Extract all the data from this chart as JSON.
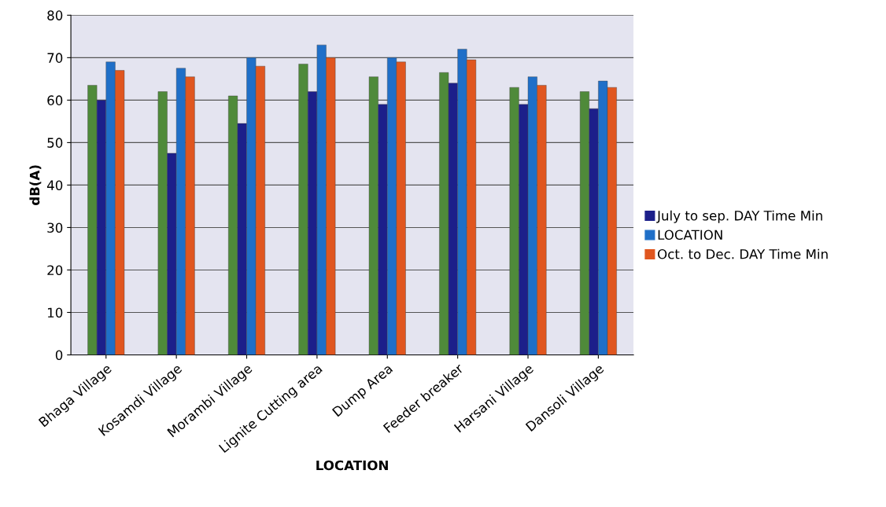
{
  "chart_data": {
    "type": "bar",
    "xlabel": "LOCATION",
    "ylabel": "dB(A)",
    "categories": [
      "Bhaga Village",
      "Kosamdi Village",
      "Morambi Village",
      "Lignite Cutting area",
      "Dump Area",
      "Feeder breaker",
      "Harsani Village",
      "Dansoli Village"
    ],
    "series": [
      {
        "color": "#4f8a3a",
        "values": [
          63.5,
          62,
          61,
          68.5,
          65.5,
          66.5,
          63,
          62
        ]
      },
      {
        "name": "July to sep. DAY Time Min",
        "color": "#1c1f8a",
        "values": [
          60,
          47.5,
          54.5,
          62,
          59,
          64,
          59,
          58
        ]
      },
      {
        "name": "LOCATION",
        "color": "#1f6fc8",
        "values": [
          69,
          67.5,
          70,
          73,
          70,
          72,
          65.5,
          64.5
        ]
      },
      {
        "name": "Oct. to Dec. DAY Time Min",
        "color": "#e0561f",
        "values": [
          67,
          65.5,
          68,
          70,
          69,
          69.5,
          63.5,
          63
        ]
      }
    ],
    "ylim": [
      0,
      80
    ],
    "yticks": [
      0,
      10,
      20,
      30,
      40,
      50,
      60,
      70,
      80
    ],
    "grid": "y",
    "legend": "right"
  }
}
